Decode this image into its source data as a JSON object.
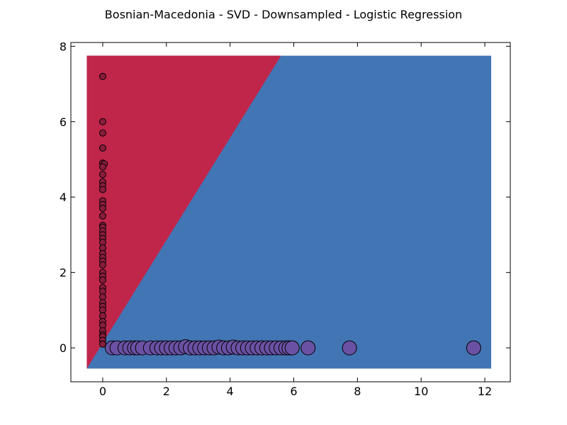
{
  "chart_data": {
    "type": "scatter",
    "title": "Bosnian-Macedonia - SVD - Downsampled - Logistic Regression",
    "xlabel": "",
    "ylabel": "",
    "xlim": [
      -1,
      12.8
    ],
    "ylim": [
      -0.9,
      8.1
    ],
    "xticks": [
      0,
      2,
      4,
      6,
      8,
      10,
      12
    ],
    "yticks": [
      0,
      2,
      4,
      6,
      8
    ],
    "grid": false,
    "decision_regions": {
      "extent_x": [
        -0.5,
        12.2
      ],
      "extent_y": [
        -0.55,
        7.75
      ],
      "boundary": [
        [
          -0.5,
          -0.55
        ],
        [
          5.6,
          7.75
        ]
      ],
      "left_color": "#c0264a",
      "right_color": "#4275b4"
    },
    "series": [
      {
        "color": "#8a1d3c",
        "marker": "small-circle",
        "points": [
          [
            0,
            7.2
          ],
          [
            0,
            6.0
          ],
          [
            0,
            5.7
          ],
          [
            0,
            5.3
          ],
          [
            0,
            4.9
          ],
          [
            0.05,
            4.88
          ],
          [
            0,
            4.8
          ],
          [
            0,
            4.6
          ],
          [
            0,
            4.4
          ],
          [
            0,
            4.3
          ],
          [
            0,
            4.2
          ],
          [
            0,
            3.9
          ],
          [
            0,
            3.8
          ],
          [
            0,
            3.7
          ],
          [
            0,
            3.5
          ],
          [
            0,
            3.25
          ],
          [
            0,
            3.2
          ],
          [
            0,
            3.1
          ],
          [
            0,
            3.0
          ],
          [
            0,
            2.9
          ],
          [
            0,
            2.8
          ],
          [
            0,
            2.65
          ],
          [
            0,
            2.5
          ],
          [
            0,
            2.4
          ],
          [
            0,
            2.3
          ],
          [
            0,
            2.2
          ],
          [
            0,
            2.0
          ],
          [
            0,
            1.9
          ],
          [
            0,
            1.8
          ],
          [
            0,
            1.6
          ],
          [
            0,
            1.5
          ],
          [
            0,
            1.35
          ],
          [
            0,
            1.2
          ],
          [
            0,
            1.1
          ],
          [
            0,
            1.0
          ],
          [
            0,
            0.85
          ],
          [
            0,
            0.7
          ],
          [
            0,
            0.6
          ],
          [
            0,
            0.45
          ],
          [
            0,
            0.35
          ],
          [
            0,
            0.3
          ],
          [
            0,
            0.2
          ],
          [
            0,
            0.1
          ]
        ]
      },
      {
        "color": "#6a51a3",
        "marker": "large-circle",
        "points": [
          [
            0.3,
            0
          ],
          [
            0.45,
            0
          ],
          [
            0.7,
            0
          ],
          [
            0.85,
            0
          ],
          [
            1.0,
            0
          ],
          [
            1.1,
            0
          ],
          [
            1.25,
            0
          ],
          [
            1.5,
            0
          ],
          [
            1.7,
            0
          ],
          [
            1.85,
            0
          ],
          [
            2.0,
            0
          ],
          [
            2.15,
            0
          ],
          [
            2.3,
            0
          ],
          [
            2.45,
            0
          ],
          [
            2.6,
            0.03
          ],
          [
            2.75,
            0
          ],
          [
            2.9,
            0
          ],
          [
            3.05,
            0
          ],
          [
            3.2,
            0
          ],
          [
            3.35,
            0
          ],
          [
            3.5,
            0
          ],
          [
            3.65,
            0.02
          ],
          [
            3.8,
            0
          ],
          [
            3.95,
            0
          ],
          [
            4.1,
            0.02
          ],
          [
            4.25,
            0
          ],
          [
            4.4,
            0
          ],
          [
            4.55,
            0
          ],
          [
            4.7,
            0
          ],
          [
            4.85,
            0
          ],
          [
            5.0,
            0
          ],
          [
            5.15,
            0
          ],
          [
            5.3,
            0
          ],
          [
            5.45,
            0
          ],
          [
            5.6,
            0
          ],
          [
            5.75,
            0
          ],
          [
            5.85,
            0
          ],
          [
            5.95,
            0
          ],
          [
            6.45,
            0
          ],
          [
            7.75,
            0
          ],
          [
            11.65,
            0
          ]
        ]
      }
    ]
  }
}
